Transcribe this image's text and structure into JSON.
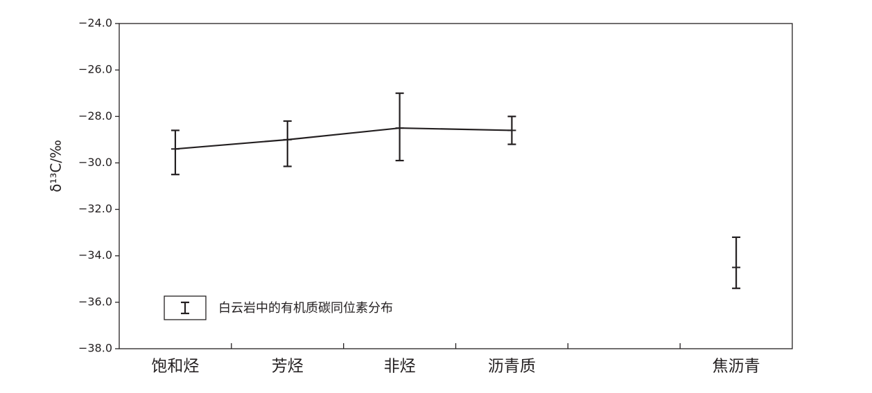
{
  "chart_data": {
    "type": "line",
    "ylabel": "δ¹³C/‰",
    "categories": [
      "饱和烃",
      "芳烃",
      "非烃",
      "沥青质",
      null,
      "焦沥青"
    ],
    "series": [
      {
        "color": "#231f20",
        "values": [
          -29.4,
          -29.0,
          -28.5,
          -28.6,
          null,
          -34.5
        ],
        "high": [
          -28.6,
          -28.2,
          -27.0,
          -28.0,
          null,
          -33.2
        ],
        "low": [
          -30.5,
          -30.15,
          -29.9,
          -29.2,
          null,
          -35.4
        ]
      }
    ],
    "legend_label": "白云岩中的有机质碳同位素分布",
    "ylim": [
      -38,
      -24
    ],
    "yticks": [
      {
        "value": -24,
        "label": "−24.0"
      },
      {
        "value": -26,
        "label": "−26.0"
      },
      {
        "value": -28,
        "label": "−28.0"
      },
      {
        "value": -30,
        "label": "−30.0"
      },
      {
        "value": -32,
        "label": "−32.0"
      },
      {
        "value": -34,
        "label": "−34.0"
      },
      {
        "value": -36,
        "label": "−36.0"
      },
      {
        "value": -38,
        "label": "−38.0"
      }
    ],
    "grid": false
  }
}
